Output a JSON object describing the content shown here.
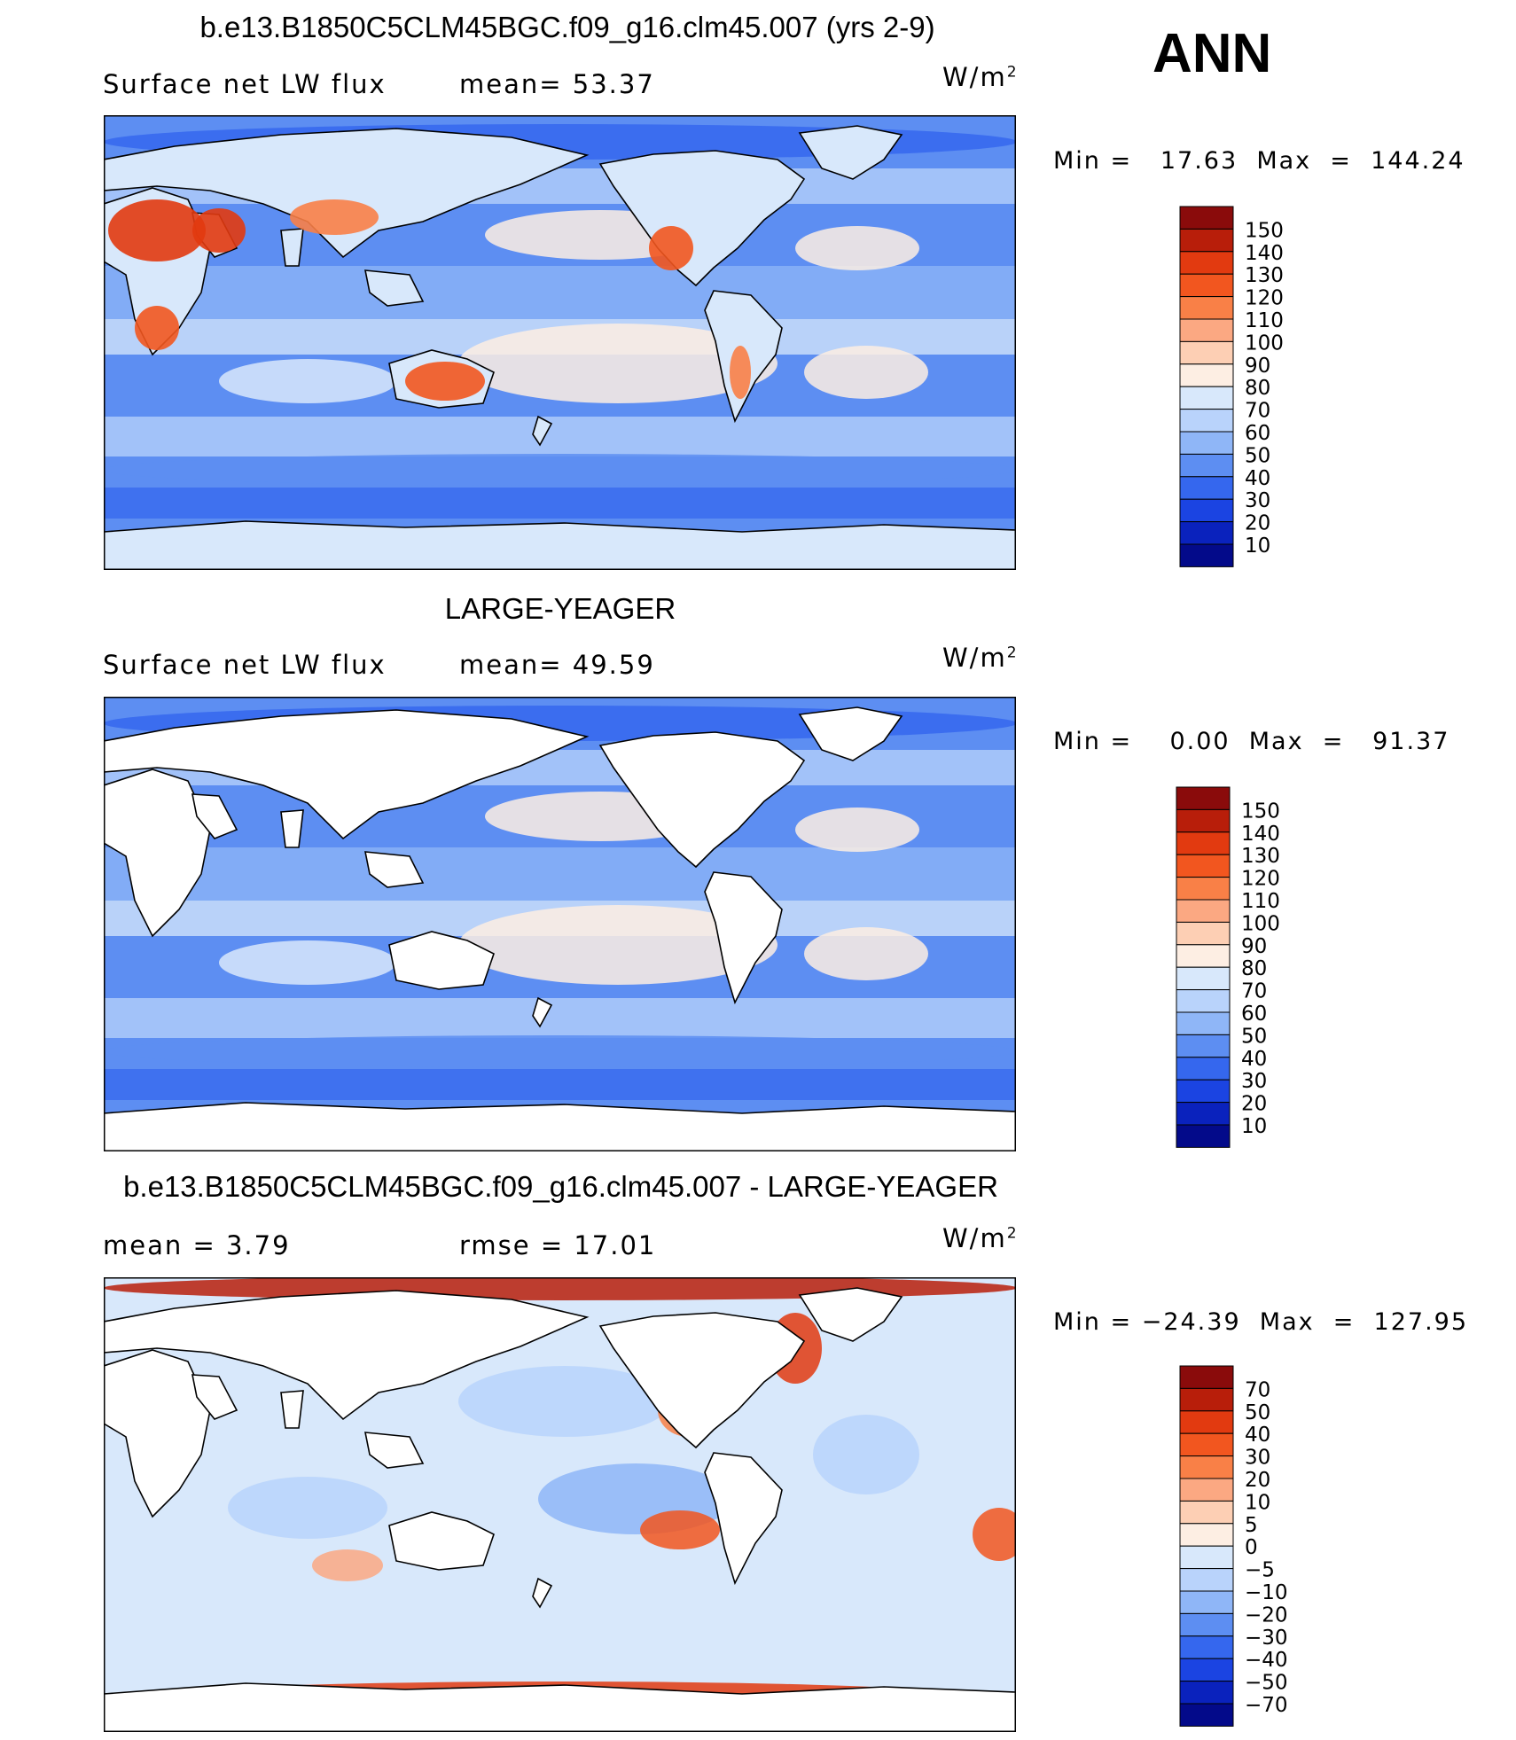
{
  "season": "ANN",
  "units": {
    "base": "W/m",
    "exp": "2"
  },
  "panels": [
    {
      "title": "b.e13.B1850C5CLM45BGC.f09_g16.clm45.007 (yrs 2-9)",
      "left_label": "Surface net LW flux",
      "stat1": "mean=   53.37",
      "stat2": "",
      "minmax": "Min =   17.63  Max  =  144.24",
      "levels": [
        "150",
        "140",
        "130",
        "120",
        "110",
        "100",
        "90",
        "80",
        "70",
        "60",
        "50",
        "40",
        "30",
        "20",
        "10"
      ],
      "colors": [
        "#8a0b0b",
        "#b81e0a",
        "#e23a10",
        "#f2561f",
        "#f98047",
        "#fba882",
        "#fdcfb4",
        "#fdeee3",
        "#d8e8fb",
        "#b9d3fb",
        "#8fb6f7",
        "#5d8ef2",
        "#3567ee",
        "#1b44e2",
        "#0a22bd",
        "#030a8a"
      ],
      "land_fill": "model"
    },
    {
      "title": "LARGE-YEAGER",
      "left_label": "Surface net LW flux",
      "stat1": "mean=   49.59",
      "stat2": "",
      "minmax": "Min =    0.00  Max  =   91.37",
      "levels": [
        "150",
        "140",
        "130",
        "120",
        "110",
        "100",
        "90",
        "80",
        "70",
        "60",
        "50",
        "40",
        "30",
        "20",
        "10"
      ],
      "colors": [
        "#8a0b0b",
        "#b81e0a",
        "#e23a10",
        "#f2561f",
        "#f98047",
        "#fba882",
        "#fdcfb4",
        "#fdeee3",
        "#d8e8fb",
        "#b9d3fb",
        "#8fb6f7",
        "#5d8ef2",
        "#3567ee",
        "#1b44e2",
        "#0a22bd",
        "#030a8a"
      ],
      "land_fill": "none"
    },
    {
      "title": "b.e13.B1850C5CLM45BGC.f09_g16.clm45.007 - LARGE-YEAGER",
      "left_label": "mean =    3.79",
      "stat1": "rmse =   17.01",
      "stat2": "",
      "minmax": "Min = −24.39  Max  =  127.95",
      "levels": [
        "70",
        "50",
        "40",
        "30",
        "20",
        "10",
        "5",
        "0",
        "−5",
        "−10",
        "−20",
        "−30",
        "−40",
        "−50",
        "−70"
      ],
      "colors": [
        "#8a0b0b",
        "#b81e0a",
        "#e23a10",
        "#f2561f",
        "#f98047",
        "#fba882",
        "#fdcfb4",
        "#fdeee3",
        "#d8e8fb",
        "#b9d3fb",
        "#8fb6f7",
        "#5d8ef2",
        "#3567ee",
        "#1b44e2",
        "#0a22bd",
        "#030a8a"
      ],
      "land_fill": "none"
    }
  ]
}
